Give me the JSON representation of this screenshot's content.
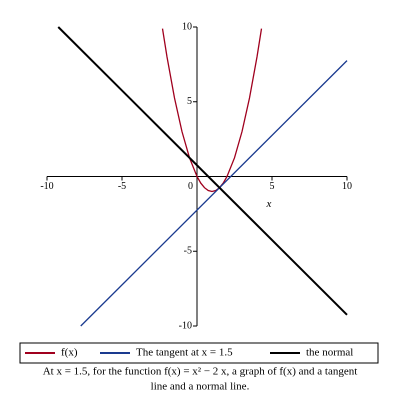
{
  "chart_data": {
    "type": "line",
    "xlabel": "x",
    "xlim": [
      -10,
      10
    ],
    "ylim": [
      -10,
      10
    ],
    "xticks": [
      -10,
      -5,
      0,
      5,
      10
    ],
    "yticks": [
      -10,
      -5,
      5,
      10
    ],
    "series": [
      {
        "name": "f(x)",
        "color": "#a0001e",
        "x": [
          -2.3,
          -2,
          -1.5,
          -1,
          -0.5,
          0,
          0.25,
          0.5,
          0.75,
          1,
          1.25,
          1.5,
          1.75,
          2,
          2.5,
          3,
          3.5,
          4,
          4.3
        ],
        "values": [
          9.89,
          8,
          5.25,
          3,
          1.25,
          0,
          -0.44,
          -0.75,
          -0.94,
          -1,
          -0.94,
          -0.75,
          -0.44,
          0,
          1.25,
          3,
          5.25,
          8,
          9.89
        ]
      },
      {
        "name": "The tangent at x = 1.5",
        "color": "#1a3a8f",
        "x": [
          -7.75,
          10
        ],
        "values": [
          -10,
          7.75
        ]
      },
      {
        "name": "the normal",
        "color": "#000000",
        "x": [
          -9.25,
          10
        ],
        "values": [
          10,
          -9.25
        ]
      }
    ],
    "caption": [
      "At x = 1.5, for the function f(x) = x² − 2 x, a graph of f(x) and a tangent",
      "line and a normal line."
    ]
  }
}
